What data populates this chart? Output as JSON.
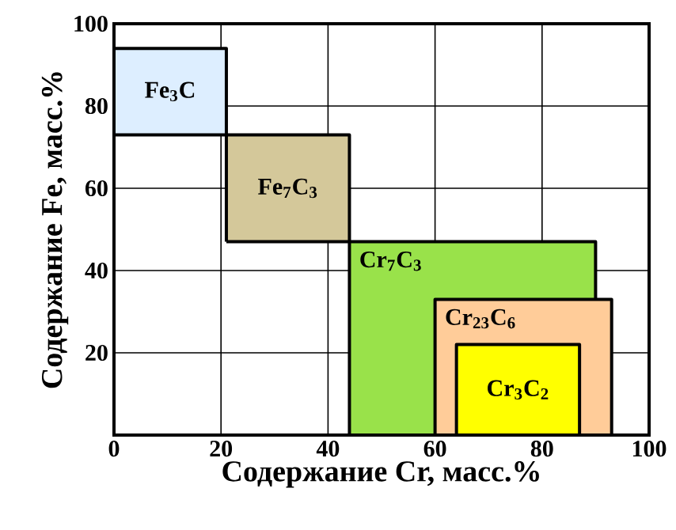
{
  "chart_data": {
    "type": "area",
    "xlabel": "Содержание Cr, масс.%",
    "ylabel": "Содержание Fe, масс.%",
    "xlim": [
      0,
      100
    ],
    "ylim": [
      0,
      100
    ],
    "xticks": [
      0,
      20,
      40,
      60,
      80,
      100
    ],
    "yticks": [
      {
        "value": 0,
        "label": null
      },
      20,
      40,
      60,
      80,
      100
    ],
    "grid": true,
    "marker": "none",
    "line_style": "solid",
    "series": [
      {
        "name": "Fe$_{3}$C",
        "color": "#ddeeff",
        "x": [
          0,
          21,
          21,
          0,
          0
        ],
        "values": [
          73,
          73,
          94,
          94,
          73
        ]
      },
      {
        "name": "Fe$_{7}$C$_{3}$",
        "color": "#d4c89a",
        "x": [
          21,
          44,
          44,
          21,
          21
        ],
        "values": [
          47,
          47,
          73,
          73,
          47
        ]
      },
      {
        "name": "Cr$_{7}$C$_{3}$",
        "color": "#99e24a",
        "x": [
          44,
          90,
          90,
          44,
          44
        ],
        "values": [
          0,
          0,
          47,
          47,
          0
        ]
      },
      {
        "name": "Cr$_{23}$C$_{6}$",
        "color": "#ffcc99",
        "x": [
          60,
          93,
          93,
          60,
          60
        ],
        "values": [
          0,
          0,
          33,
          33,
          0
        ]
      },
      {
        "name": "Cr$_{3}$C$_{2}$",
        "color": "#ffff00",
        "x": [
          64,
          87,
          87,
          64,
          64
        ],
        "values": [
          0,
          0,
          22,
          22,
          0
        ]
      }
    ]
  }
}
